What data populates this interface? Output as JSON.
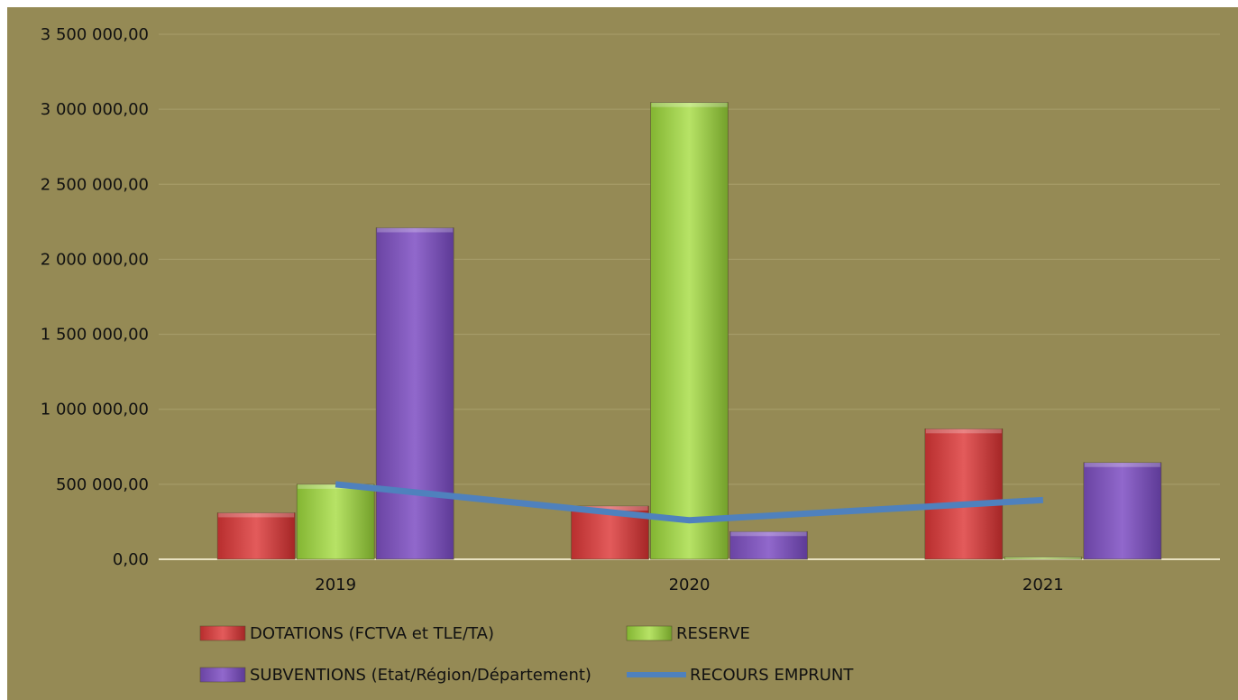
{
  "chart_data": {
    "type": "bar",
    "categories": [
      "2019",
      "2020",
      "2021"
    ],
    "ylim": [
      0,
      3500000
    ],
    "y_ticks": [
      0,
      500000,
      1000000,
      1500000,
      2000000,
      2500000,
      3000000,
      3500000
    ],
    "y_tick_labels": [
      "0,00",
      "500 000,00",
      "1 000 000,00",
      "1 500 000,00",
      "2 000 000,00",
      "2 500 000,00",
      "3 000 000,00",
      "3 500 000,00"
    ],
    "grid": true,
    "legend_position": "bottom",
    "series": [
      {
        "name": "DOTATIONS (FCTVA et TLE/TA)",
        "type": "bar",
        "color": "#d64545",
        "values": [
          310000,
          355000,
          870000
        ]
      },
      {
        "name": "RESERVE",
        "type": "bar",
        "color": "#9fcf4a",
        "values": [
          500000,
          3045000,
          15000
        ]
      },
      {
        "name": "SUBVENTIONS (Etat/Région/Département)",
        "type": "bar",
        "color": "#7e57b8",
        "values": [
          2210000,
          185000,
          645000
        ]
      },
      {
        "name": "RECOURS EMPRUNT",
        "type": "line",
        "color": "#4f81bd",
        "values": [
          500000,
          260000,
          395000
        ]
      }
    ]
  }
}
